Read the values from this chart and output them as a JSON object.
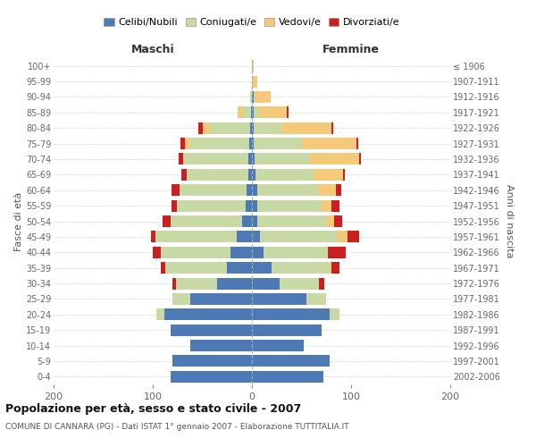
{
  "age_groups": [
    "0-4",
    "5-9",
    "10-14",
    "15-19",
    "20-24",
    "25-29",
    "30-34",
    "35-39",
    "40-44",
    "45-49",
    "50-54",
    "55-59",
    "60-64",
    "65-69",
    "70-74",
    "75-79",
    "80-84",
    "85-89",
    "90-94",
    "95-99",
    "100+"
  ],
  "birth_years": [
    "2002-2006",
    "1997-2001",
    "1992-1996",
    "1987-1991",
    "1982-1986",
    "1977-1981",
    "1972-1976",
    "1967-1971",
    "1962-1966",
    "1957-1961",
    "1952-1956",
    "1947-1951",
    "1942-1946",
    "1937-1941",
    "1932-1936",
    "1927-1931",
    "1922-1926",
    "1917-1921",
    "1912-1916",
    "1907-1911",
    "≤ 1906"
  ],
  "maschi": {
    "celibi": [
      82,
      80,
      62,
      82,
      88,
      62,
      35,
      25,
      22,
      15,
      10,
      6,
      5,
      4,
      4,
      3,
      2,
      1,
      0,
      0,
      0
    ],
    "coniugati": [
      0,
      0,
      0,
      0,
      8,
      18,
      42,
      62,
      70,
      82,
      72,
      70,
      68,
      62,
      65,
      60,
      40,
      8,
      2,
      0,
      0
    ],
    "vedovi": [
      0,
      0,
      0,
      0,
      0,
      0,
      0,
      0,
      0,
      0,
      0,
      0,
      0,
      0,
      0,
      5,
      8,
      5,
      0,
      0,
      0
    ],
    "divorziati": [
      0,
      0,
      0,
      0,
      0,
      0,
      3,
      5,
      8,
      5,
      8,
      5,
      8,
      5,
      5,
      4,
      4,
      0,
      0,
      0,
      0
    ]
  },
  "femmine": {
    "nubili": [
      72,
      78,
      52,
      70,
      78,
      55,
      28,
      20,
      12,
      8,
      5,
      5,
      5,
      4,
      3,
      2,
      2,
      2,
      2,
      0,
      0
    ],
    "coniugate": [
      0,
      0,
      0,
      0,
      10,
      20,
      40,
      58,
      65,
      78,
      70,
      65,
      62,
      58,
      55,
      48,
      28,
      5,
      2,
      0,
      0
    ],
    "vedove": [
      0,
      0,
      0,
      0,
      0,
      0,
      0,
      2,
      0,
      10,
      8,
      10,
      18,
      30,
      50,
      55,
      50,
      28,
      15,
      5,
      2
    ],
    "divorziate": [
      0,
      0,
      0,
      0,
      0,
      0,
      5,
      8,
      18,
      12,
      8,
      8,
      5,
      2,
      2,
      2,
      2,
      2,
      0,
      0,
      0
    ]
  },
  "colors": {
    "celibi": "#4d7ab5",
    "coniugati": "#c8d9a5",
    "vedovi": "#f5c97a",
    "divorziati": "#cc2020"
  },
  "title": "Popolazione per età, sesso e stato civile - 2007",
  "subtitle": "COMUNE DI CANNARA (PG) - Dati ISTAT 1° gennaio 2007 - Elaborazione TUTTITALIA.IT",
  "xlabel_left": "Maschi",
  "xlabel_right": "Femmine",
  "ylabel_left": "Fasce di età",
  "ylabel_right": "Anni di nascita",
  "xlim": 200,
  "legend_labels": [
    "Celibi/Nubili",
    "Coniugati/e",
    "Vedovi/e",
    "Divorziati/e"
  ],
  "bg_color": "#ffffff",
  "grid_color": "#cccccc"
}
